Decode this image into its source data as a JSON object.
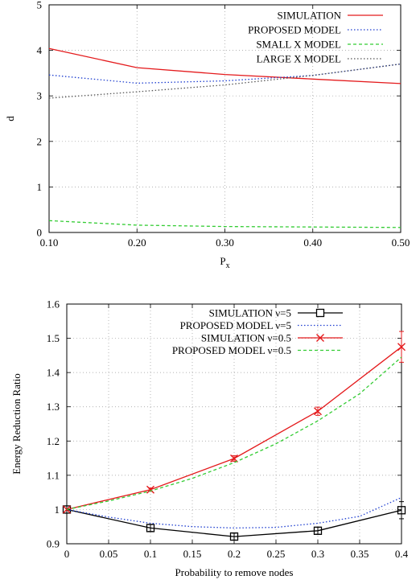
{
  "chart_data": [
    {
      "type": "line",
      "xlabel": "P",
      "xlabel_sub": "x",
      "ylabel": "d",
      "xlim": [
        0.1,
        0.5
      ],
      "ylim": [
        0,
        5
      ],
      "xticks": [
        0.1,
        0.2,
        0.3,
        0.4,
        0.5
      ],
      "xtick_labels": [
        "0.10",
        "0.20",
        "0.30",
        "0.40",
        "0.50"
      ],
      "yticks": [
        0,
        1,
        2,
        3,
        4,
        5
      ],
      "ytick_labels": [
        "0",
        "1",
        "2",
        "3",
        "4",
        "5"
      ],
      "grid": true,
      "legend_position": "top-right",
      "series": [
        {
          "name": "SIMULATION",
          "color": "#e41a1c",
          "dash": "solid",
          "x": [
            0.1,
            0.2,
            0.3,
            0.4,
            0.5
          ],
          "y": [
            4.04,
            3.62,
            3.47,
            3.37,
            3.27
          ]
        },
        {
          "name": "PROPOSED MODEL",
          "color": "#1f3fd0",
          "dash": "dotted",
          "x": [
            0.1,
            0.2,
            0.3,
            0.4,
            0.5
          ],
          "y": [
            3.46,
            3.28,
            3.33,
            3.45,
            3.7
          ]
        },
        {
          "name": "SMALL X MODEL",
          "color": "#33cc33",
          "dash": "dashed",
          "x": [
            0.1,
            0.2,
            0.3,
            0.4,
            0.5
          ],
          "y": [
            0.26,
            0.16,
            0.13,
            0.12,
            0.11
          ]
        },
        {
          "name": "LARGE X MODEL",
          "color": "#555555",
          "dash": "dotted",
          "x": [
            0.1,
            0.2,
            0.3,
            0.4,
            0.5
          ],
          "y": [
            2.95,
            3.09,
            3.24,
            3.45,
            3.7
          ]
        }
      ]
    },
    {
      "type": "line",
      "xlabel": "Probability to remove nodes",
      "ylabel": "Energy Reduction Ratio",
      "xlim": [
        0,
        0.4
      ],
      "ylim": [
        0.9,
        1.6
      ],
      "xticks": [
        0,
        0.05,
        0.1,
        0.15,
        0.2,
        0.25,
        0.3,
        0.35,
        0.4
      ],
      "xtick_labels": [
        "0",
        "0.05",
        "0.1",
        "0.15",
        "0.2",
        "0.25",
        "0.3",
        "0.35",
        "0.4"
      ],
      "yticks": [
        0.9,
        1.0,
        1.1,
        1.2,
        1.3,
        1.4,
        1.5,
        1.6
      ],
      "ytick_labels": [
        "0.9",
        "1",
        "1.1",
        "1.2",
        "1.3",
        "1.4",
        "1.5",
        "1.6"
      ],
      "grid": true,
      "legend_position": "top-left",
      "series": [
        {
          "name": "SIMULATION ν=5",
          "color": "#000000",
          "dash": "solid",
          "marker": "square",
          "x": [
            0,
            0.1,
            0.2,
            0.3,
            0.4
          ],
          "y": [
            1.0,
            0.946,
            0.921,
            0.938,
            0.998
          ],
          "yerr": [
            0,
            0.01,
            0.01,
            0.01,
            0.025
          ]
        },
        {
          "name": "PROPOSED MODEL ν=5",
          "color": "#1f3fd0",
          "dash": "dotted",
          "x": [
            0,
            0.05,
            0.1,
            0.15,
            0.2,
            0.25,
            0.3,
            0.35,
            0.4
          ],
          "y": [
            1.0,
            0.978,
            0.96,
            0.95,
            0.946,
            0.948,
            0.96,
            0.98,
            1.035
          ]
        },
        {
          "name": "SIMULATION ν=0.5",
          "color": "#e41a1c",
          "dash": "solid",
          "marker": "x",
          "x": [
            0,
            0.1,
            0.2,
            0.3,
            0.4
          ],
          "y": [
            1.0,
            1.058,
            1.149,
            1.287,
            1.475
          ],
          "yerr": [
            0,
            0.005,
            0.008,
            0.012,
            0.045
          ]
        },
        {
          "name": "PROPOSED MODEL ν=0.5",
          "color": "#33cc33",
          "dash": "dashed",
          "x": [
            0,
            0.05,
            0.1,
            0.15,
            0.2,
            0.25,
            0.3,
            0.35,
            0.4
          ],
          "y": [
            1.0,
            1.025,
            1.054,
            1.091,
            1.137,
            1.192,
            1.259,
            1.338,
            1.445
          ]
        }
      ]
    }
  ]
}
